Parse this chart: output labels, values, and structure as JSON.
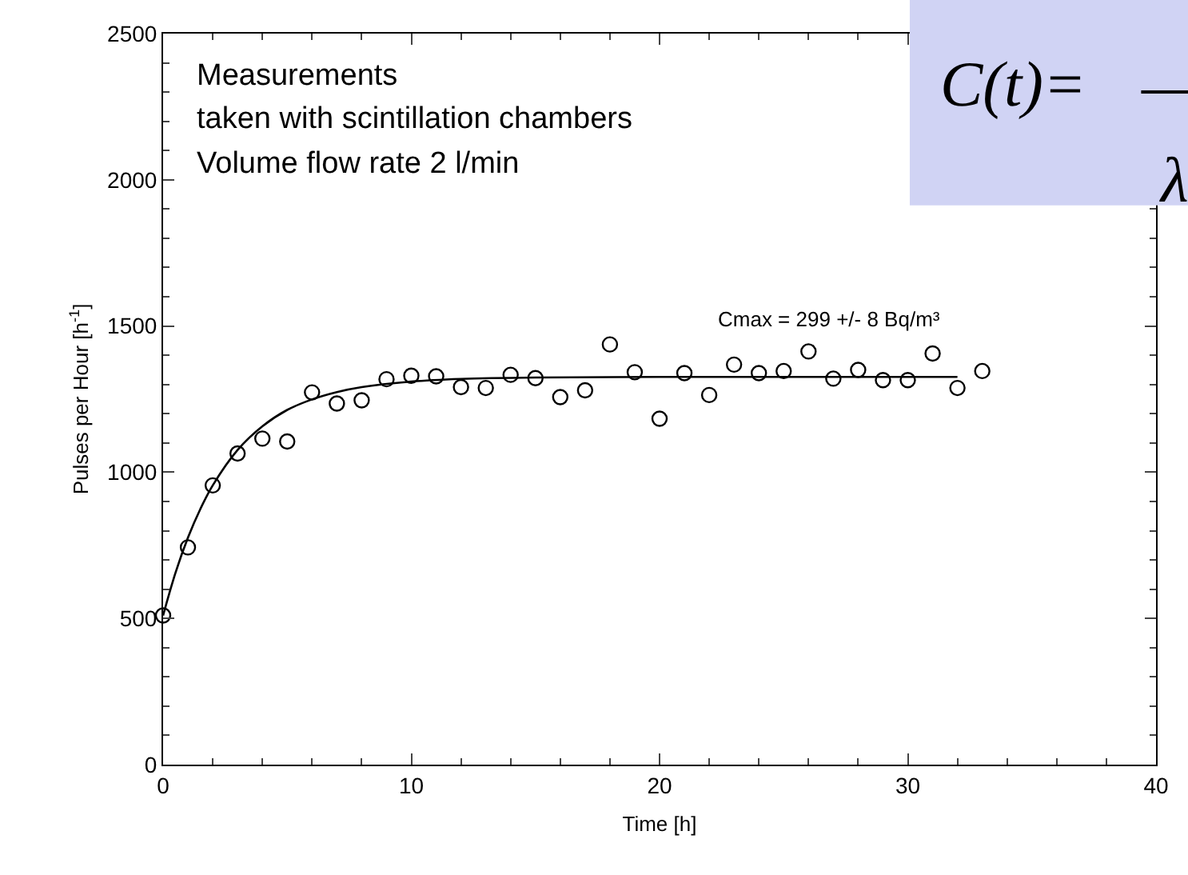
{
  "chart_data": {
    "type": "scatter",
    "xlabel": "Time [h]",
    "ylabel": "Pulses per Hour [h$^{-1}$]",
    "xlim": [
      0,
      40
    ],
    "xticks": [
      0,
      10,
      20,
      30,
      40
    ],
    "ylim": [
      0,
      2500
    ],
    "yticks": [
      0,
      500,
      1000,
      1500,
      2000,
      2500
    ],
    "marker": "circle",
    "series": [
      {
        "color": "#000000",
        "x": [
          0,
          1,
          2,
          3,
          4,
          5,
          6,
          7,
          8,
          9,
          10,
          11,
          12,
          13,
          14,
          15,
          16,
          17,
          18,
          19,
          20,
          21,
          22,
          23,
          24,
          25,
          26,
          27,
          28,
          29,
          30,
          31,
          32,
          33
        ],
        "values": [
          510,
          743,
          955,
          1064,
          1115,
          1105,
          1273,
          1235,
          1246,
          1318,
          1330,
          1328,
          1291,
          1288,
          1333,
          1322,
          1257,
          1280,
          1437,
          1342,
          1183,
          1339,
          1264,
          1368,
          1339,
          1346,
          1413,
          1320,
          1350,
          1315,
          1315,
          1406,
          1288,
          1346
        ]
      },
      {
        "type": "line",
        "marker": "none",
        "color": "#000000",
        "x": [
          0,
          0.5,
          1,
          1.5,
          2,
          3,
          4,
          5,
          6,
          7,
          8,
          10,
          12,
          15,
          20,
          32
        ],
        "values": [
          510,
          656,
          776,
          874,
          955,
          1076,
          1157,
          1213,
          1249,
          1274,
          1291,
          1310,
          1319,
          1324,
          1326,
          1326
        ]
      }
    ],
    "annotations": [
      "Measurements",
      "taken with scintillation chambers",
      "Volume flow rate 2 l/min",
      "Cmax = 299 +/- 8 Bq/m³",
      "C(t)=",
      "λ"
    ]
  }
}
